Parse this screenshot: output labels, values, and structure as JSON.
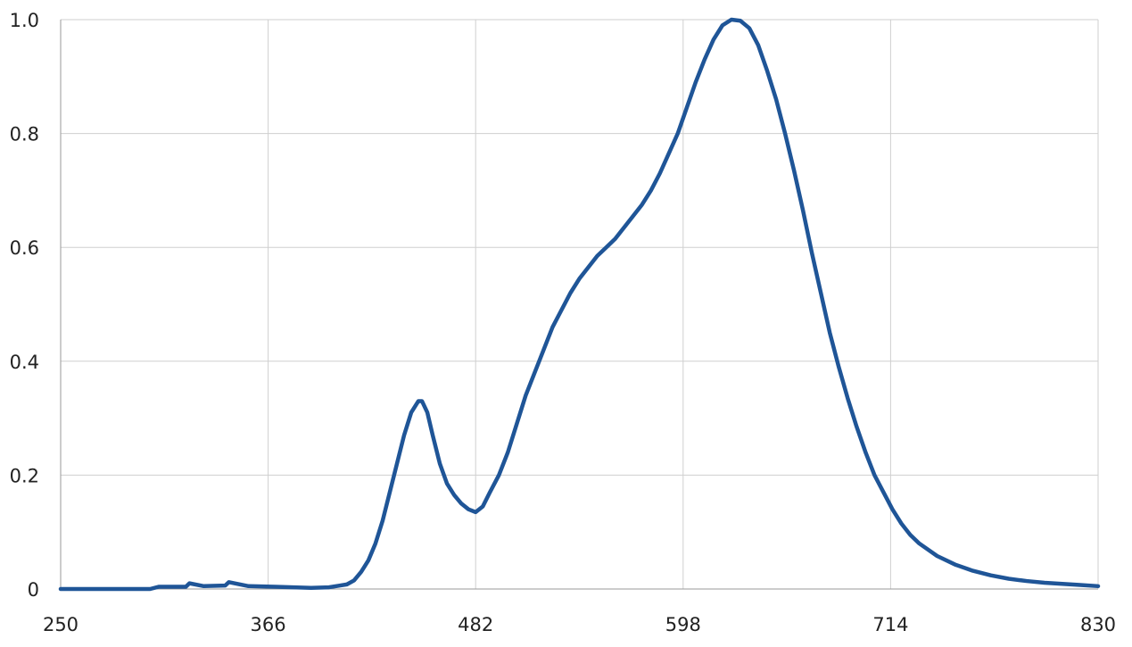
{
  "chart_data": {
    "type": "line",
    "title": "",
    "xlabel": "",
    "ylabel": "",
    "xlim": [
      250,
      830
    ],
    "ylim": [
      0,
      1.0
    ],
    "x_ticks": [
      250,
      366,
      482,
      598,
      714,
      830
    ],
    "x_tick_labels": [
      "250",
      "366",
      "482",
      "598",
      "714",
      "830"
    ],
    "y_ticks": [
      0,
      0.2,
      0.4,
      0.6,
      0.8,
      1.0
    ],
    "y_tick_labels": [
      "0",
      "0.2",
      "0.4",
      "0.6",
      "0.8",
      "1.0"
    ],
    "grid": true,
    "legend": "none",
    "colors": {
      "series": "#1f5597",
      "grid": "#cfcfcf",
      "axis": "#9a9a9a",
      "text": "#222222"
    },
    "series": [
      {
        "x": [
          250,
          300,
          305,
          320,
          322,
          330,
          342,
          344,
          355,
          370,
          390,
          400,
          410,
          414,
          418,
          422,
          426,
          430,
          434,
          438,
          442,
          446,
          450,
          452,
          455,
          458,
          462,
          466,
          470,
          474,
          478,
          482,
          486,
          490,
          495,
          500,
          505,
          510,
          515,
          520,
          525,
          530,
          535,
          540,
          545,
          550,
          555,
          560,
          565,
          570,
          575,
          580,
          585,
          590,
          595,
          600,
          605,
          610,
          615,
          620,
          625,
          630,
          635,
          640,
          645,
          650,
          655,
          660,
          665,
          670,
          675,
          680,
          685,
          690,
          695,
          700,
          705,
          710,
          715,
          720,
          725,
          730,
          740,
          750,
          760,
          770,
          780,
          790,
          800,
          810,
          820,
          830
        ],
        "y": [
          0,
          0,
          0.004,
          0.004,
          0.01,
          0.005,
          0.006,
          0.012,
          0.005,
          0.004,
          0.002,
          0.003,
          0.008,
          0.015,
          0.03,
          0.05,
          0.08,
          0.12,
          0.17,
          0.22,
          0.27,
          0.31,
          0.33,
          0.33,
          0.31,
          0.27,
          0.22,
          0.185,
          0.165,
          0.15,
          0.14,
          0.135,
          0.145,
          0.17,
          0.2,
          0.24,
          0.29,
          0.34,
          0.38,
          0.42,
          0.46,
          0.49,
          0.52,
          0.545,
          0.565,
          0.585,
          0.6,
          0.615,
          0.635,
          0.655,
          0.675,
          0.7,
          0.73,
          0.765,
          0.8,
          0.845,
          0.89,
          0.93,
          0.965,
          0.99,
          1.0,
          0.998,
          0.985,
          0.955,
          0.91,
          0.86,
          0.8,
          0.735,
          0.665,
          0.59,
          0.52,
          0.45,
          0.39,
          0.335,
          0.285,
          0.24,
          0.2,
          0.17,
          0.14,
          0.115,
          0.095,
          0.08,
          0.058,
          0.043,
          0.032,
          0.024,
          0.018,
          0.014,
          0.011,
          0.009,
          0.007,
          0.005
        ]
      }
    ]
  }
}
